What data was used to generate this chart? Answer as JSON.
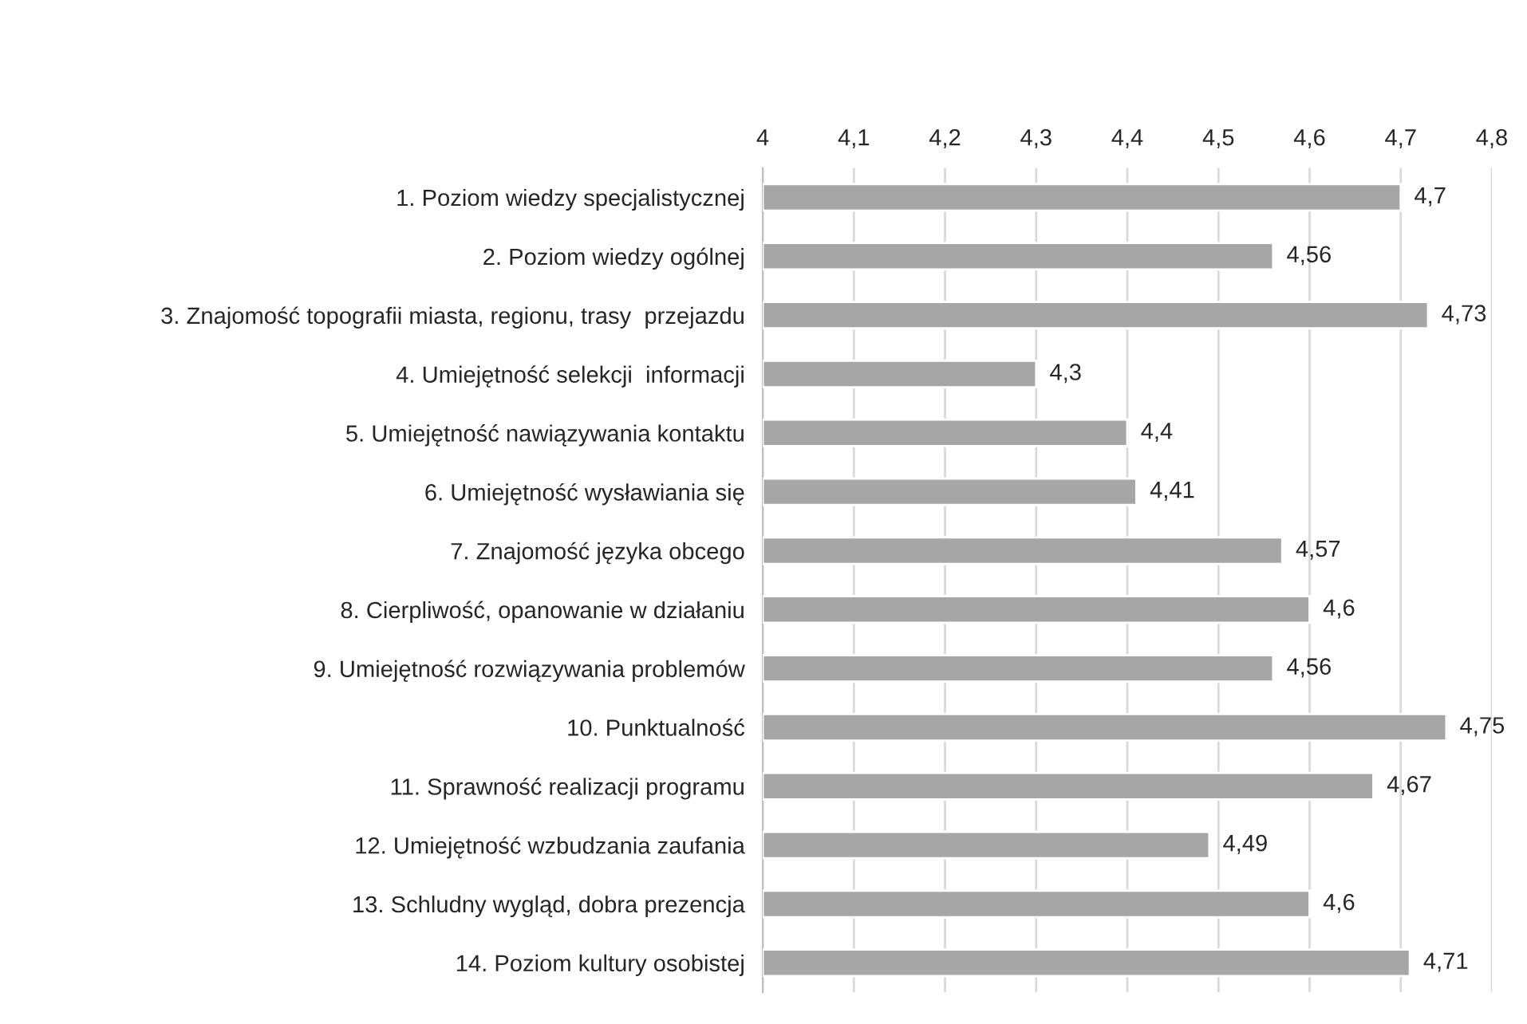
{
  "chart_data": {
    "type": "bar",
    "orientation": "horizontal",
    "color": "#a6a6a6",
    "categories": [
      "1. Poziom wiedzy specjalistycznej",
      "2. Poziom wiedzy ogólnej",
      "3. Znajomość topografii miasta, regionu, trasy  przejazdu",
      "4. Umiejętność selekcji  informacji",
      "5. Umiejętność nawiązywania kontaktu",
      "6. Umiejętność wysławiania się",
      "7. Znajomość języka obcego",
      "8. Cierpliwość, opanowanie w działaniu",
      "9. Umiejętność rozwiązywania problemów",
      "10. Punktualność",
      "11. Sprawność realizacji programu",
      "12. Umiejętność wzbudzania zaufania",
      "13. Schludny wygląd, dobra prezencja",
      "14. Poziom kultury osobistej"
    ],
    "values": [
      4.7,
      4.56,
      4.73,
      4.3,
      4.4,
      4.41,
      4.57,
      4.6,
      4.56,
      4.75,
      4.67,
      4.49,
      4.6,
      4.71
    ],
    "value_labels": [
      "4,7",
      "4,56",
      "4,73",
      "4,3",
      "4,4",
      "4,41",
      "4,57",
      "4,6",
      "4,56",
      "4,75",
      "4,67",
      "4,49",
      "4,6",
      "4,71"
    ],
    "xlim": [
      4,
      4.8
    ],
    "xticks": [
      4,
      {
        "value": 4.1,
        "label": "4,1"
      },
      {
        "value": 4.2,
        "label": "4,2"
      },
      {
        "value": 4.3,
        "label": "4,3"
      },
      {
        "value": 4.4,
        "label": "4,4"
      },
      {
        "value": 4.5,
        "label": "4,5"
      },
      {
        "value": 4.6,
        "label": "4,6"
      },
      {
        "value": 4.7,
        "label": "4,7"
      },
      {
        "value": 4.8,
        "label": "4,8"
      }
    ],
    "grid": "x"
  }
}
